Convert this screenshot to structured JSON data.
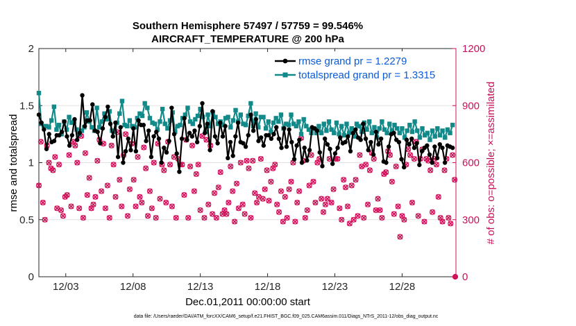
{
  "chart_data": {
    "type": "line",
    "title_line1": "Southern Hemisphere 57497 / 57759 = 99.546%",
    "title_line2": "AIRCRAFT_TEMPERATURE @ 200 hPa",
    "xlabel": "Dec.01,2011 00:00:00 start",
    "ylabel_left": "rmse and totalspread",
    "ylabel_right": "# of obs: o=possible; ×=assimilated",
    "footnote": "data file: /Users/raeder/DAI/ATM_forcXX/CAM6_setup/f.e21.FHIST_BGC.f09_025.CAM6assim.011/Diags_NTrS_2011-12/obs_diag_output.nc",
    "xlim": [
      1,
      32
    ],
    "ylim_left": [
      0,
      2
    ],
    "ylim_right": [
      0,
      1200
    ],
    "x_ticks": [
      3,
      8,
      13,
      18,
      23,
      28
    ],
    "x_tick_labels": [
      "12/03",
      "12/08",
      "12/13",
      "12/18",
      "12/23",
      "12/28"
    ],
    "y_left_ticks": [
      "0",
      "0.5",
      "1",
      "1.5",
      "2"
    ],
    "y_right_ticks": [
      "0",
      "300",
      "600",
      "900",
      "1200"
    ],
    "colors": {
      "rmse": "#000000",
      "spread": "#138a8a",
      "obs": "#d1115a",
      "right_axis": "#c8105a"
    },
    "series": [
      {
        "name": "rmse grand pr = 1.2279",
        "axis": "left",
        "values": [
          1.42,
          1.35,
          1.29,
          1.12,
          1.25,
          1.18,
          1.19,
          1.24,
          1.24,
          1.27,
          1.36,
          1.23,
          1.15,
          1.24,
          1.38,
          1.2,
          1.26,
          1.59,
          1.32,
          1.37,
          1.37,
          1.51,
          1.28,
          1.27,
          1.17,
          1.3,
          1.4,
          1.49,
          1.34,
          1.23,
          1.35,
          1.05,
          1.31,
          1.0,
          1.1,
          1.21,
          1.11,
          1.3,
          1.1,
          1.37,
          1.33,
          1.33,
          1.19,
          1.28,
          1.05,
          1.23,
          1.27,
          1.21,
          1.0,
          1.13,
          1.09,
          1.19,
          1.48,
          1.25,
          1.08,
          0.92,
          1.21,
          1.39,
          1.2,
          1.26,
          1.23,
          1.28,
          1.18,
          1.32,
          1.52,
          1.26,
          1.34,
          1.11,
          1.45,
          1.23,
          1.17,
          1.35,
          1.23,
          1.32,
          1.04,
          1.18,
          1.06,
          1.23,
          1.35,
          1.18,
          1.17,
          1.14,
          1.24,
          1.42,
          1.28,
          1.38,
          1.19,
          1.22,
          1.15,
          1.24,
          1.24,
          1.21,
          1.25,
          1.31,
          1.21,
          1.13,
          1.3,
          1.14,
          1.29,
          1.18,
          1.03,
          1.15,
          1.2,
          1.0,
          1.13,
          1.02,
          1.11,
          1.31,
          1.3,
          1.28,
          1.09,
          0.97,
          1.21,
          1.16,
          1.12,
          0.99,
          1.08,
          1.13,
          1.22,
          1.17,
          1.18,
          1.23,
          1.1,
          1.26,
          1.29,
          1.22,
          1.2,
          1.34,
          1.21,
          1.11,
          1.18,
          1.07,
          1.27,
          1.16,
          1.21,
          1.01,
          1.0,
          1.14,
          1.25,
          1.26,
          1.2,
          1.18,
          1.03,
          0.96,
          1.2,
          1.16,
          1.21,
          1.13,
          1.17,
          0.98,
          1.1,
          1.13,
          1.15,
          1.07,
          1.0,
          1.14,
          1.04,
          1.16,
          1.13,
          1.0,
          1.15,
          1.14,
          1.13
        ]
      },
      {
        "name": "totalspread grand pr = 1.3315",
        "axis": "left",
        "values": [
          1.61,
          1.34,
          1.32,
          1.32,
          1.31,
          1.37,
          1.49,
          1.29,
          1.33,
          1.25,
          1.36,
          1.29,
          1.4,
          1.35,
          1.36,
          1.29,
          1.25,
          1.28,
          1.31,
          1.44,
          1.36,
          1.31,
          1.28,
          1.48,
          1.31,
          1.36,
          1.43,
          1.38,
          1.45,
          1.28,
          1.27,
          1.35,
          1.43,
          1.54,
          1.33,
          1.32,
          1.37,
          1.32,
          1.31,
          1.39,
          1.43,
          1.41,
          1.52,
          1.48,
          1.39,
          1.35,
          1.34,
          1.29,
          1.36,
          1.47,
          1.34,
          1.3,
          1.37,
          1.44,
          1.27,
          1.32,
          1.33,
          1.39,
          1.42,
          1.48,
          1.36,
          1.34,
          1.38,
          1.41,
          1.47,
          1.4,
          1.27,
          1.42,
          1.32,
          1.44,
          1.4,
          1.34,
          1.36,
          1.33,
          1.39,
          1.4,
          1.31,
          1.37,
          1.46,
          1.36,
          1.42,
          1.34,
          1.33,
          1.41,
          1.52,
          1.32,
          1.43,
          1.31,
          1.4,
          1.4,
          1.3,
          1.36,
          1.27,
          1.35,
          1.39,
          1.36,
          1.42,
          1.3,
          1.34,
          1.33,
          1.42,
          1.34,
          1.32,
          1.36,
          1.25,
          1.38,
          1.32,
          1.29,
          1.26,
          1.3,
          1.26,
          1.32,
          1.26,
          1.34,
          1.28,
          1.36,
          1.29,
          1.26,
          1.35,
          1.25,
          1.32,
          1.24,
          1.34,
          1.26,
          1.3,
          1.23,
          1.34,
          1.32,
          1.27,
          1.35,
          1.29,
          1.36,
          1.26,
          1.31,
          1.22,
          1.3,
          1.36,
          1.29,
          1.26,
          1.34,
          1.28,
          1.33,
          1.3,
          1.26,
          1.3,
          1.22,
          1.28,
          1.33,
          1.27,
          1.36,
          1.28,
          1.22,
          1.3,
          1.24,
          1.26,
          1.2,
          1.28,
          1.23,
          1.3,
          1.24,
          1.28,
          1.22,
          1.29,
          1.26,
          1.33
        ]
      },
      {
        "name": "observations possible/assimilated",
        "axis": "right",
        "values": [
          480,
          710,
          390,
          300,
          690,
          600,
          570,
          560,
          630,
          360,
          590,
          350,
          320,
          420,
          430,
          640,
          370,
          710,
          690,
          600,
          360,
          740,
          310,
          650,
          430,
          520,
          360,
          380,
          420,
          610,
          720,
          450,
          700,
          360,
          480,
          310,
          690,
          590,
          420,
          760,
          510,
          370,
          640,
          750,
          320,
          460,
          700,
          510,
          370,
          630,
          420,
          390,
          680,
          570,
          320,
          450,
          360,
          600,
          310,
          700,
          410,
          590,
          560,
          390,
          710,
          590,
          370,
          630,
          310,
          620,
          590,
          590,
          430,
          720,
          310,
          580,
          690,
          450,
          540,
          590,
          350,
          740,
          310,
          720,
          380,
          690,
          330,
          440,
          310,
          470,
          550,
          330,
          350,
          330,
          390,
          580,
          450,
          290,
          490,
          360,
          600,
          380,
          330,
          610,
          570,
          310,
          610,
          440,
          390,
          420,
          620,
          410,
          460,
          560,
          400,
          500,
          570,
          590,
          380,
          340,
          450,
          290,
          420,
          310,
          460,
          500,
          600,
          290,
          390,
          450,
          730,
          610,
          310,
          350,
          480,
          640,
          500,
          390,
          600,
          620,
          410,
          340,
          380,
          410,
          620,
          390,
          460,
          620,
          620,
          360,
          300,
          510,
          470,
          370,
          280,
          480,
          300,
          510,
          320,
          640,
          580,
          310,
          590,
          380,
          560,
          650,
          620,
          350,
          410,
          350,
          310,
          540,
          550,
          660,
          640,
          500,
          330,
          580,
          370,
          210,
          320,
          300,
          590,
          670,
          640,
          390,
          620,
          710,
          320,
          620,
          670,
          290,
          620,
          610,
          560,
          340,
          620,
          590,
          420,
          310,
          290,
          560,
          620,
          310,
          280,
          640,
          510
        ]
      }
    ]
  }
}
